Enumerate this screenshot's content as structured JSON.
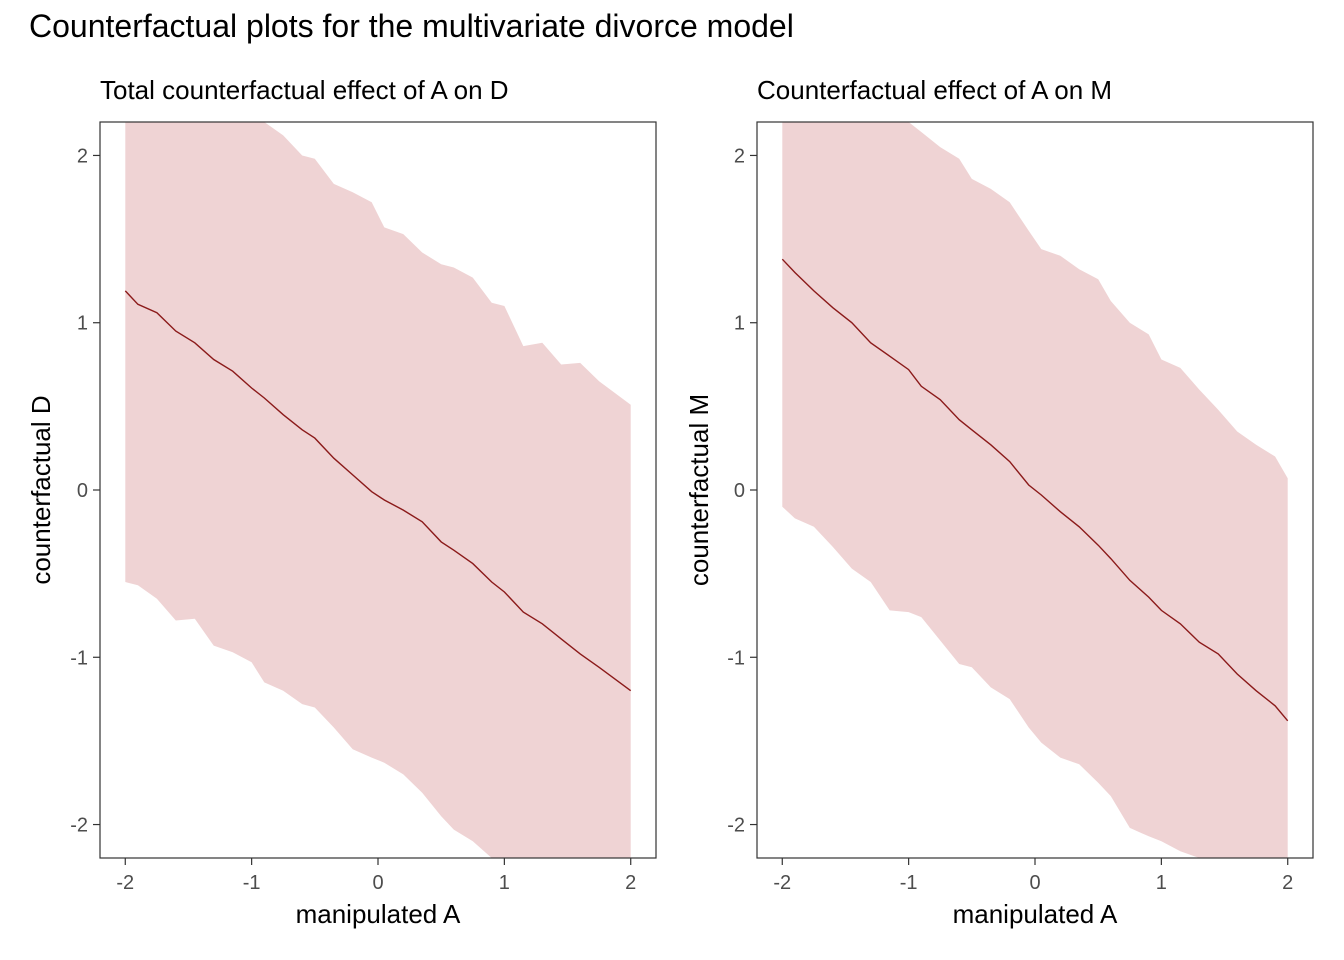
{
  "title": "Counterfactual plots for the multivariate divorce model",
  "colors": {
    "band": "#efd3d4",
    "line": "#8b1a1a",
    "frame": "#333333",
    "tick_text": "#4d4d4d"
  },
  "chart_data": [
    {
      "type": "line",
      "title": "Total counterfactual effect of A on D",
      "xlabel": "manipulated A",
      "ylabel": "counterfactual D",
      "xlim": [
        -2.2,
        2.2
      ],
      "ylim": [
        -2.2,
        2.2
      ],
      "xticks": [
        -2,
        -1,
        0,
        1,
        2
      ],
      "yticks": [
        -2,
        -1,
        0,
        1,
        2
      ],
      "grid": false,
      "x": [
        -2,
        -1.9,
        -1.75,
        -1.6,
        -1.45,
        -1.3,
        -1.15,
        -1,
        -0.9,
        -0.75,
        -0.6,
        -0.5,
        -0.35,
        -0.2,
        -0.05,
        0.05,
        0.2,
        0.35,
        0.5,
        0.6,
        0.75,
        0.9,
        1,
        1.15,
        1.3,
        1.45,
        1.6,
        1.75,
        2
      ],
      "series": [
        {
          "band_lower": [
            -0.55,
            -0.57,
            -0.65,
            -0.78,
            -0.77,
            -0.93,
            -0.97,
            -1.03,
            -1.15,
            -1.2,
            -1.28,
            -1.3,
            -1.42,
            -1.55,
            -1.6,
            -1.63,
            -1.7,
            -1.81,
            -1.95,
            -2.03,
            -2.1,
            -2.2,
            -2.2,
            -2.2,
            -2.2,
            -2.2,
            -2.2,
            -2.2,
            -2.2
          ],
          "band_upper": [
            2.2,
            2.2,
            2.2,
            2.2,
            2.2,
            2.2,
            2.2,
            2.2,
            2.2,
            2.12,
            2.0,
            1.98,
            1.83,
            1.78,
            1.72,
            1.57,
            1.53,
            1.42,
            1.35,
            1.33,
            1.27,
            1.12,
            1.1,
            0.86,
            0.88,
            0.75,
            0.76,
            0.65,
            0.51
          ],
          "values": [
            1.19,
            1.11,
            1.06,
            0.95,
            0.88,
            0.78,
            0.71,
            0.61,
            0.55,
            0.45,
            0.36,
            0.31,
            0.19,
            0.09,
            -0.01,
            -0.06,
            -0.12,
            -0.19,
            -0.31,
            -0.36,
            -0.44,
            -0.55,
            -0.61,
            -0.73,
            -0.8,
            -0.89,
            -0.98,
            -1.06,
            -1.2
          ]
        }
      ]
    },
    {
      "type": "line",
      "title": "Counterfactual effect of A on M",
      "xlabel": "manipulated A",
      "ylabel": "counterfactual M",
      "xlim": [
        -2.2,
        2.2
      ],
      "ylim": [
        -2.2,
        2.2
      ],
      "xticks": [
        -2,
        -1,
        0,
        1,
        2
      ],
      "yticks": [
        -2,
        -1,
        0,
        1,
        2
      ],
      "grid": false,
      "x": [
        -2,
        -1.9,
        -1.75,
        -1.6,
        -1.45,
        -1.3,
        -1.15,
        -1,
        -0.9,
        -0.75,
        -0.6,
        -0.5,
        -0.35,
        -0.2,
        -0.05,
        0.05,
        0.2,
        0.35,
        0.5,
        0.6,
        0.75,
        0.9,
        1,
        1.15,
        1.3,
        1.45,
        1.6,
        1.75,
        1.9,
        2
      ],
      "series": [
        {
          "band_lower": [
            -0.1,
            -0.17,
            -0.22,
            -0.34,
            -0.47,
            -0.55,
            -0.72,
            -0.73,
            -0.76,
            -0.9,
            -1.04,
            -1.06,
            -1.18,
            -1.25,
            -1.42,
            -1.51,
            -1.6,
            -1.64,
            -1.75,
            -1.83,
            -2.02,
            -2.07,
            -2.1,
            -2.16,
            -2.2,
            -2.2,
            -2.2,
            -2.2,
            -2.2,
            -2.2
          ],
          "band_upper": [
            2.2,
            2.2,
            2.2,
            2.2,
            2.2,
            2.2,
            2.2,
            2.2,
            2.14,
            2.05,
            1.98,
            1.86,
            1.8,
            1.72,
            1.55,
            1.44,
            1.4,
            1.32,
            1.26,
            1.13,
            1.0,
            0.93,
            0.78,
            0.73,
            0.6,
            0.48,
            0.35,
            0.27,
            0.2,
            0.07
          ],
          "values": [
            1.38,
            1.3,
            1.19,
            1.09,
            1.0,
            0.88,
            0.8,
            0.72,
            0.62,
            0.54,
            0.42,
            0.36,
            0.27,
            0.17,
            0.03,
            -0.03,
            -0.13,
            -0.22,
            -0.33,
            -0.41,
            -0.54,
            -0.64,
            -0.72,
            -0.8,
            -0.91,
            -0.98,
            -1.1,
            -1.2,
            -1.29,
            -1.38
          ]
        }
      ]
    }
  ]
}
